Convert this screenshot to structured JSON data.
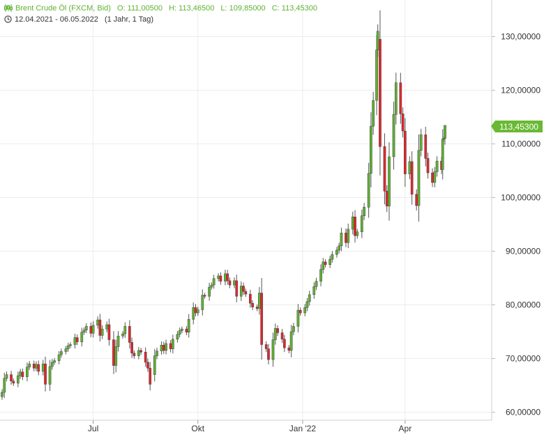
{
  "legend": {
    "instrument": "Brent Crude Öl (FXCM, Bid)",
    "open_label": "O:",
    "open": "111,00500",
    "high_label": "H:",
    "high": "113,46500",
    "low_label": "L:",
    "low": "109,85000",
    "close_label": "C:",
    "close": "113,45300",
    "date_range": "12.04.2021 - 06.05.2022",
    "period": "(1 Jahr, 1 Tag)",
    "icons": [
      "candles-icon",
      "clock-icon"
    ]
  },
  "price_badge": "113,45300",
  "colors": {
    "up": "#5fb131",
    "down": "#e0262c",
    "grid": "#ececec",
    "badge": "#6ab935",
    "axis_text": "#333333"
  },
  "chart_data": {
    "type": "candlestick",
    "title": "Brent Crude Öl (FXCM, Bid)",
    "x_ticks": [
      "Jul",
      "Okt",
      "Jan '22",
      "Apr"
    ],
    "y_ticks": [
      "60,00000",
      "70,00000",
      "80,00000",
      "90,00000",
      "100,00000",
      "110,00000",
      "120,00000",
      "130,00000"
    ],
    "ylim": [
      58.3,
      137
    ],
    "xlim": [
      "2021-04-12",
      "2022-05-06"
    ],
    "y_axis_position": "right",
    "grid": true,
    "last_price": 113.453,
    "candles": [
      {
        "d": "2021-04-12",
        "o": 62.9,
        "c": 63.7
      },
      {
        "d": "2021-04-14",
        "o": 63.7,
        "c": 66.3
      },
      {
        "d": "2021-04-16",
        "o": 66.3,
        "c": 67.0
      },
      {
        "d": "2021-04-20",
        "o": 67.0,
        "c": 65.8
      },
      {
        "d": "2021-04-22",
        "o": 65.8,
        "c": 65.4
      },
      {
        "d": "2021-04-26",
        "o": 65.4,
        "c": 66.8
      },
      {
        "d": "2021-04-28",
        "o": 66.8,
        "c": 67.5
      },
      {
        "d": "2021-04-30",
        "o": 67.5,
        "c": 66.6
      },
      {
        "d": "2021-05-04",
        "o": 66.6,
        "c": 68.4
      },
      {
        "d": "2021-05-06",
        "o": 68.4,
        "c": 69.0
      },
      {
        "d": "2021-05-10",
        "o": 69.0,
        "c": 68.2
      },
      {
        "d": "2021-05-12",
        "o": 68.2,
        "c": 68.9
      },
      {
        "d": "2021-05-14",
        "o": 68.9,
        "c": 67.6
      },
      {
        "d": "2021-05-18",
        "o": 67.6,
        "c": 69.0
      },
      {
        "d": "2021-05-20",
        "o": 69.0,
        "c": 65.2
      },
      {
        "d": "2021-05-24",
        "o": 65.2,
        "c": 68.5
      },
      {
        "d": "2021-05-26",
        "o": 68.5,
        "c": 69.3
      },
      {
        "d": "2021-05-28",
        "o": 69.3,
        "c": 69.6
      },
      {
        "d": "2021-06-01",
        "o": 69.6,
        "c": 70.7
      },
      {
        "d": "2021-06-03",
        "o": 70.7,
        "c": 71.3
      },
      {
        "d": "2021-06-07",
        "o": 71.3,
        "c": 71.8
      },
      {
        "d": "2021-06-09",
        "o": 71.8,
        "c": 72.4
      },
      {
        "d": "2021-06-11",
        "o": 72.4,
        "c": 72.6
      },
      {
        "d": "2021-06-15",
        "o": 72.6,
        "c": 73.9
      },
      {
        "d": "2021-06-17",
        "o": 73.9,
        "c": 73.1
      },
      {
        "d": "2021-06-21",
        "o": 73.1,
        "c": 74.9
      },
      {
        "d": "2021-06-23",
        "o": 74.9,
        "c": 75.3
      },
      {
        "d": "2021-06-25",
        "o": 75.3,
        "c": 76.0
      },
      {
        "d": "2021-06-29",
        "o": 76.0,
        "c": 74.7
      },
      {
        "d": "2021-07-01",
        "o": 74.7,
        "c": 76.2
      },
      {
        "d": "2021-07-05",
        "o": 76.2,
        "c": 77.2
      },
      {
        "d": "2021-07-07",
        "o": 77.2,
        "c": 74.3
      },
      {
        "d": "2021-07-09",
        "o": 74.3,
        "c": 75.5
      },
      {
        "d": "2021-07-13",
        "o": 75.5,
        "c": 76.3
      },
      {
        "d": "2021-07-15",
        "o": 76.3,
        "c": 73.5
      },
      {
        "d": "2021-07-19",
        "o": 73.5,
        "c": 68.7
      },
      {
        "d": "2021-07-21",
        "o": 68.7,
        "c": 72.2
      },
      {
        "d": "2021-07-23",
        "o": 72.2,
        "c": 74.2
      },
      {
        "d": "2021-07-27",
        "o": 74.2,
        "c": 74.6
      },
      {
        "d": "2021-07-29",
        "o": 74.6,
        "c": 76.0
      },
      {
        "d": "2021-08-02",
        "o": 76.0,
        "c": 73.0
      },
      {
        "d": "2021-08-04",
        "o": 73.0,
        "c": 71.0
      },
      {
        "d": "2021-08-06",
        "o": 71.0,
        "c": 70.5
      },
      {
        "d": "2021-08-10",
        "o": 70.5,
        "c": 71.5
      },
      {
        "d": "2021-08-12",
        "o": 71.5,
        "c": 71.2
      },
      {
        "d": "2021-08-16",
        "o": 71.2,
        "c": 69.3
      },
      {
        "d": "2021-08-18",
        "o": 69.3,
        "c": 68.2
      },
      {
        "d": "2021-08-20",
        "o": 68.2,
        "c": 65.2
      },
      {
        "d": "2021-08-24",
        "o": 67.0,
        "c": 70.5
      },
      {
        "d": "2021-08-26",
        "o": 70.5,
        "c": 71.4
      },
      {
        "d": "2021-08-30",
        "o": 71.4,
        "c": 72.5
      },
      {
        "d": "2021-09-01",
        "o": 72.5,
        "c": 71.5
      },
      {
        "d": "2021-09-03",
        "o": 71.5,
        "c": 72.8
      },
      {
        "d": "2021-09-07",
        "o": 72.8,
        "c": 71.8
      },
      {
        "d": "2021-09-09",
        "o": 71.8,
        "c": 73.6
      },
      {
        "d": "2021-09-13",
        "o": 73.6,
        "c": 74.5
      },
      {
        "d": "2021-09-15",
        "o": 74.5,
        "c": 75.2
      },
      {
        "d": "2021-09-17",
        "o": 75.2,
        "c": 75.5
      },
      {
        "d": "2021-09-21",
        "o": 75.5,
        "c": 74.9
      },
      {
        "d": "2021-09-23",
        "o": 74.9,
        "c": 77.3
      },
      {
        "d": "2021-09-27",
        "o": 77.3,
        "c": 79.5
      },
      {
        "d": "2021-09-29",
        "o": 79.5,
        "c": 78.5
      },
      {
        "d": "2021-10-01",
        "o": 78.5,
        "c": 79.1
      },
      {
        "d": "2021-10-05",
        "o": 79.1,
        "c": 81.8
      },
      {
        "d": "2021-10-07",
        "o": 81.8,
        "c": 81.6
      },
      {
        "d": "2021-10-11",
        "o": 81.6,
        "c": 83.3
      },
      {
        "d": "2021-10-13",
        "o": 83.3,
        "c": 83.7
      },
      {
        "d": "2021-10-15",
        "o": 83.7,
        "c": 84.9
      },
      {
        "d": "2021-10-19",
        "o": 84.9,
        "c": 85.4
      },
      {
        "d": "2021-10-21",
        "o": 85.4,
        "c": 84.4
      },
      {
        "d": "2021-10-25",
        "o": 84.4,
        "c": 85.8
      },
      {
        "d": "2021-10-27",
        "o": 85.8,
        "c": 84.5
      },
      {
        "d": "2021-10-29",
        "o": 84.5,
        "c": 83.7
      },
      {
        "d": "2021-11-02",
        "o": 83.7,
        "c": 84.5
      },
      {
        "d": "2021-11-04",
        "o": 84.5,
        "c": 81.6
      },
      {
        "d": "2021-11-08",
        "o": 81.6,
        "c": 83.5
      },
      {
        "d": "2021-11-10",
        "o": 83.5,
        "c": 82.5
      },
      {
        "d": "2021-11-12",
        "o": 82.5,
        "c": 82.0
      },
      {
        "d": "2021-11-16",
        "o": 82.0,
        "c": 80.3
      },
      {
        "d": "2021-11-18",
        "o": 80.3,
        "c": 79.6
      },
      {
        "d": "2021-11-22",
        "o": 79.6,
        "c": 79.3
      },
      {
        "d": "2021-11-24",
        "o": 79.3,
        "c": 82.2
      },
      {
        "d": "2021-11-26",
        "o": 82.2,
        "c": 72.6
      },
      {
        "d": "2021-11-30",
        "o": 72.6,
        "c": 71.8
      },
      {
        "d": "2021-12-02",
        "o": 71.8,
        "c": 69.8
      },
      {
        "d": "2021-12-06",
        "o": 69.8,
        "c": 73.5
      },
      {
        "d": "2021-12-08",
        "o": 73.5,
        "c": 75.6
      },
      {
        "d": "2021-12-10",
        "o": 75.6,
        "c": 74.8
      },
      {
        "d": "2021-12-14",
        "o": 74.8,
        "c": 73.6
      },
      {
        "d": "2021-12-16",
        "o": 73.6,
        "c": 72.0
      },
      {
        "d": "2021-12-20",
        "o": 72.0,
        "c": 71.5
      },
      {
        "d": "2021-12-22",
        "o": 71.5,
        "c": 75.0
      },
      {
        "d": "2021-12-24",
        "o": 75.0,
        "c": 76.0
      },
      {
        "d": "2021-12-28",
        "o": 76.0,
        "c": 79.0
      },
      {
        "d": "2021-12-30",
        "o": 79.0,
        "c": 78.5
      },
      {
        "d": "2022-01-03",
        "o": 78.5,
        "c": 79.5
      },
      {
        "d": "2022-01-05",
        "o": 79.5,
        "c": 80.6
      },
      {
        "d": "2022-01-07",
        "o": 80.6,
        "c": 81.9
      },
      {
        "d": "2022-01-11",
        "o": 81.9,
        "c": 83.4
      },
      {
        "d": "2022-01-13",
        "o": 83.4,
        "c": 84.4
      },
      {
        "d": "2022-01-17",
        "o": 84.4,
        "c": 86.6
      },
      {
        "d": "2022-01-19",
        "o": 86.6,
        "c": 88.0
      },
      {
        "d": "2022-01-21",
        "o": 88.0,
        "c": 87.5
      },
      {
        "d": "2022-01-25",
        "o": 87.5,
        "c": 88.5
      },
      {
        "d": "2022-01-27",
        "o": 88.5,
        "c": 89.4
      },
      {
        "d": "2022-01-31",
        "o": 89.4,
        "c": 90.2
      },
      {
        "d": "2022-02-02",
        "o": 90.2,
        "c": 91.0
      },
      {
        "d": "2022-02-04",
        "o": 91.0,
        "c": 93.4
      },
      {
        "d": "2022-02-08",
        "o": 93.4,
        "c": 91.6
      },
      {
        "d": "2022-02-10",
        "o": 91.6,
        "c": 94.1
      },
      {
        "d": "2022-02-14",
        "o": 94.1,
        "c": 96.4
      },
      {
        "d": "2022-02-16",
        "o": 96.4,
        "c": 92.9
      },
      {
        "d": "2022-02-18",
        "o": 92.9,
        "c": 93.6
      },
      {
        "d": "2022-02-22",
        "o": 93.6,
        "c": 96.6
      },
      {
        "d": "2022-02-24",
        "o": 96.6,
        "c": 98.2
      },
      {
        "d": "2022-02-28",
        "o": 98.2,
        "c": 104.5
      },
      {
        "d": "2022-03-02",
        "o": 104.5,
        "c": 113.3
      },
      {
        "d": "2022-03-04",
        "o": 113.3,
        "c": 118.1
      },
      {
        "d": "2022-03-07",
        "o": 118.1,
        "c": 127.5
      },
      {
        "d": "2022-03-08",
        "o": 127.5,
        "c": 131.0
      },
      {
        "d": "2022-03-10",
        "o": 129.5,
        "c": 109.5
      },
      {
        "d": "2022-03-14",
        "o": 109.5,
        "c": 101.2
      },
      {
        "d": "2022-03-16",
        "o": 101.2,
        "c": 98.4
      },
      {
        "d": "2022-03-18",
        "o": 98.4,
        "c": 107.6
      },
      {
        "d": "2022-03-22",
        "o": 107.6,
        "c": 115.5
      },
      {
        "d": "2022-03-24",
        "o": 115.5,
        "c": 121.4
      },
      {
        "d": "2022-03-28",
        "o": 121.4,
        "c": 115.6
      },
      {
        "d": "2022-03-30",
        "o": 115.6,
        "c": 112.4
      },
      {
        "d": "2022-04-01",
        "o": 112.4,
        "c": 104.4
      },
      {
        "d": "2022-04-05",
        "o": 104.4,
        "c": 106.7
      },
      {
        "d": "2022-04-07",
        "o": 106.7,
        "c": 100.6
      },
      {
        "d": "2022-04-11",
        "o": 100.6,
        "c": 98.5
      },
      {
        "d": "2022-04-13",
        "o": 98.5,
        "c": 108.8
      },
      {
        "d": "2022-04-15",
        "o": 108.8,
        "c": 111.7
      },
      {
        "d": "2022-04-19",
        "o": 111.7,
        "c": 107.3
      },
      {
        "d": "2022-04-21",
        "o": 107.3,
        "c": 104.6
      },
      {
        "d": "2022-04-25",
        "o": 104.6,
        "c": 102.8
      },
      {
        "d": "2022-04-27",
        "o": 102.8,
        "c": 104.8
      },
      {
        "d": "2022-04-29",
        "o": 104.8,
        "c": 106.8
      },
      {
        "d": "2022-05-03",
        "o": 106.8,
        "c": 105.2
      },
      {
        "d": "2022-05-04",
        "o": 105.2,
        "c": 110.9
      },
      {
        "d": "2022-05-05",
        "o": 110.9,
        "c": 111.0
      },
      {
        "d": "2022-05-06",
        "o": 111.005,
        "c": 113.453,
        "h": 113.465,
        "l": 109.85
      }
    ]
  }
}
